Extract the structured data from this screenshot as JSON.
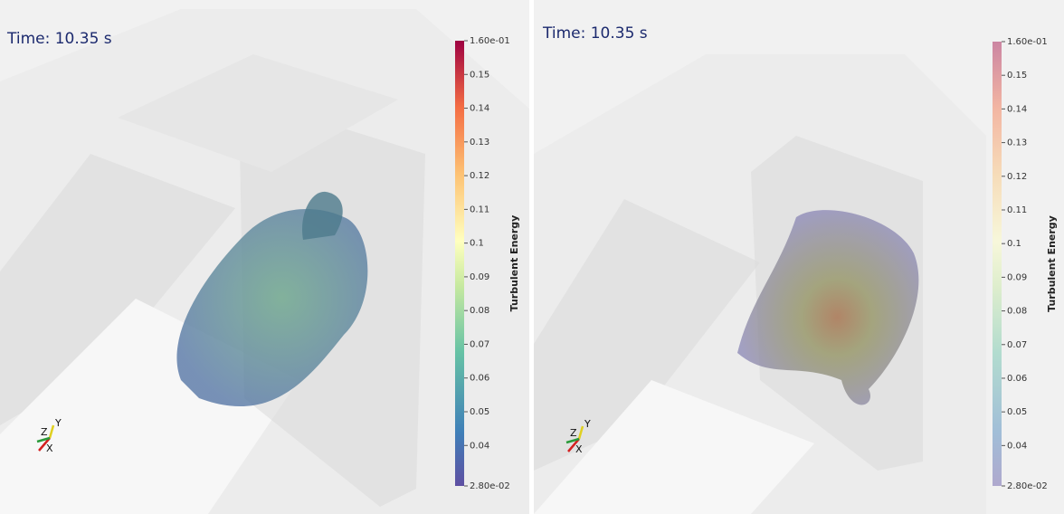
{
  "panels": [
    {
      "time": "Time: 10.35 s",
      "colorbar": {
        "title": "Turbulent Energy",
        "ticks": [
          {
            "value": 0.028,
            "label": "2.80e-02"
          },
          0.04,
          0.05,
          0.06,
          0.07,
          0.08,
          0.09,
          0.1,
          0.11,
          0.12,
          0.13,
          0.14,
          0.15,
          {
            "value": 0.16,
            "label": "1.60e-01"
          }
        ]
      },
      "axes": {
        "x": "X",
        "y": "Y",
        "z": "Z"
      }
    },
    {
      "time": "Time: 10.35 s",
      "colorbar": {
        "title": "Turbulent Energy",
        "ticks": [
          {
            "value": 0.028,
            "label": "2.80e-02"
          },
          0.04,
          0.05,
          0.06,
          0.07,
          0.08,
          0.09,
          0.1,
          0.11,
          0.12,
          0.13,
          0.14,
          0.15,
          {
            "value": 0.16,
            "label": "1.60e-01"
          }
        ]
      },
      "axes": {
        "x": "X",
        "y": "Y",
        "z": "Z"
      }
    }
  ]
}
